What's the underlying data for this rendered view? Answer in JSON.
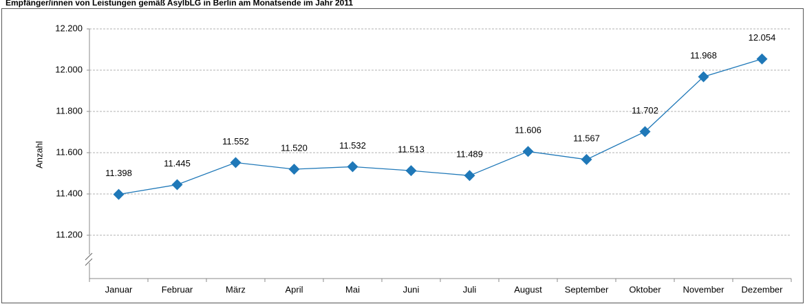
{
  "chart_data": {
    "type": "line",
    "title": "Empfänger/innen von Leistungen gemäß AsylbLG in Berlin am Monatsende im Jahr 2011",
    "y_label": "Anzahl",
    "categories": [
      "Januar",
      "Februar",
      "März",
      "April",
      "Mai",
      "Juni",
      "Juli",
      "August",
      "September",
      "Oktober",
      "November",
      "Dezember"
    ],
    "values": [
      11398,
      11445,
      11552,
      11520,
      11532,
      11513,
      11489,
      11606,
      11567,
      11702,
      11968,
      12054
    ],
    "value_labels": [
      "11.398",
      "11.445",
      "11.552",
      "11.520",
      "11.532",
      "11.513",
      "11.489",
      "11.606",
      "11.567",
      "11.702",
      "11.968",
      "12.054"
    ],
    "color": "#1f78b8",
    "ylim": [
      11000,
      12200
    ],
    "yticks": [
      {
        "value": 11200,
        "label": "11.200"
      },
      {
        "value": 11400,
        "label": "11.400"
      },
      {
        "value": 11600,
        "label": "11.600"
      },
      {
        "value": 11800,
        "label": "11.800"
      },
      {
        "value": 12000,
        "label": "12.000"
      },
      {
        "value": 12200,
        "label": "12.200"
      }
    ],
    "grid": true
  }
}
